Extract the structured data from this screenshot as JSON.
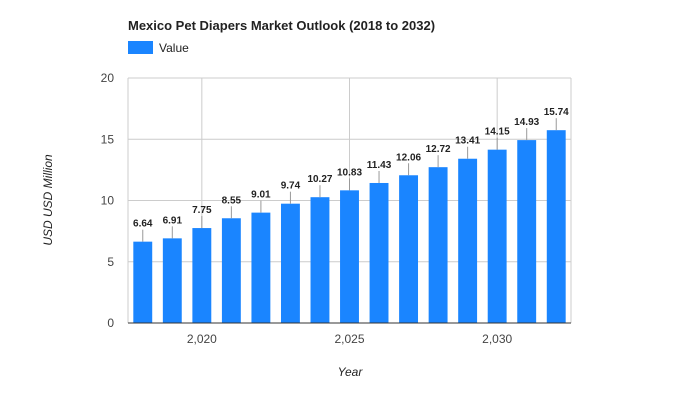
{
  "chart_data": {
    "type": "bar",
    "title": "Mexico Pet Diapers Market Outlook (2018 to 2032)",
    "xlabel": "Year",
    "ylabel": "USD USD Million",
    "ylim": [
      0,
      20
    ],
    "yticks": [
      0,
      5,
      10,
      15,
      20
    ],
    "xticks": [
      2020,
      2025,
      2030
    ],
    "xtick_labels": [
      "2,020",
      "2,025",
      "2,030"
    ],
    "xlim": [
      2017.5,
      2032.5
    ],
    "grid": true,
    "legend_position": "top-left",
    "series": [
      {
        "name": "Value",
        "color": "#1a85ff",
        "x": [
          2018,
          2019,
          2020,
          2021,
          2022,
          2023,
          2024,
          2025,
          2026,
          2027,
          2028,
          2029,
          2030,
          2031,
          2032
        ],
        "values": [
          6.64,
          6.91,
          7.75,
          8.55,
          9.01,
          9.74,
          10.27,
          10.83,
          11.43,
          12.06,
          12.72,
          13.41,
          14.15,
          14.93,
          15.74
        ],
        "labels": [
          "6.64",
          "6.91",
          "7.75",
          "8.55",
          "9.01",
          "9.74",
          "10.27",
          "10.83",
          "11.43",
          "12.06",
          "12.72",
          "13.41",
          "14.15",
          "14.93",
          "15.74"
        ]
      }
    ]
  }
}
